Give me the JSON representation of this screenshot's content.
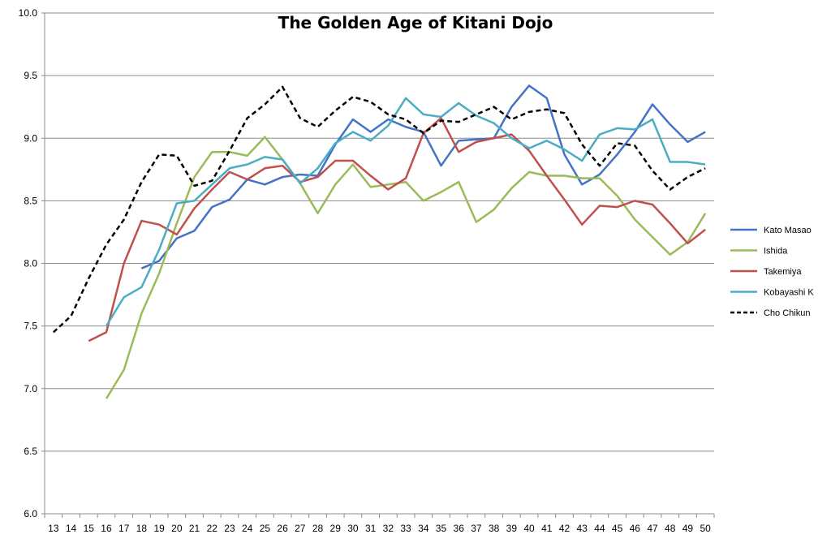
{
  "chart_data": {
    "type": "line",
    "title": "The Golden Age of Kitani Dojo",
    "xlabel": "",
    "ylabel": "",
    "x": [
      13,
      14,
      15,
      16,
      17,
      18,
      19,
      20,
      21,
      22,
      23,
      24,
      25,
      26,
      27,
      28,
      29,
      30,
      31,
      32,
      33,
      34,
      35,
      36,
      37,
      38,
      39,
      40,
      41,
      42,
      43,
      44,
      45,
      46,
      47,
      48,
      49,
      50
    ],
    "ylim": [
      6.0,
      10.0
    ],
    "y_ticks": [
      "6.0",
      "6.5",
      "7.0",
      "7.5",
      "8.0",
      "8.5",
      "9.0",
      "9.5",
      "10.0"
    ],
    "grid": "horizontal",
    "legend_position": "right",
    "series": [
      {
        "name": "Kato Masao",
        "color": "#4472C4",
        "dash": "solid",
        "values": [
          null,
          null,
          null,
          null,
          null,
          7.96,
          8.02,
          8.2,
          8.26,
          8.45,
          8.51,
          8.67,
          8.63,
          8.69,
          8.71,
          8.7,
          8.95,
          9.15,
          9.05,
          9.15,
          9.09,
          9.05,
          8.78,
          8.98,
          8.99,
          9.0,
          9.25,
          9.42,
          9.32,
          8.87,
          8.63,
          8.71,
          8.87,
          9.05,
          9.27,
          9.11,
          8.97,
          9.05
        ]
      },
      {
        "name": "Ishida",
        "color": "#9BBB59",
        "dash": "solid",
        "values": [
          null,
          null,
          null,
          6.92,
          7.15,
          7.6,
          7.92,
          8.32,
          8.69,
          8.89,
          8.89,
          8.86,
          9.01,
          8.83,
          8.64,
          8.4,
          8.63,
          8.79,
          8.61,
          8.63,
          8.65,
          8.5,
          8.57,
          8.65,
          8.33,
          8.43,
          8.6,
          8.73,
          8.7,
          8.7,
          8.68,
          8.68,
          8.54,
          8.35,
          8.21,
          8.07,
          8.17,
          8.4
        ]
      },
      {
        "name": "Takemiya",
        "color": "#C0504D",
        "dash": "solid",
        "values": [
          null,
          null,
          7.38,
          7.45,
          8.0,
          8.34,
          8.31,
          8.23,
          8.44,
          8.59,
          8.73,
          8.67,
          8.76,
          8.78,
          8.65,
          8.69,
          8.82,
          8.82,
          8.7,
          8.59,
          8.68,
          9.04,
          9.16,
          8.89,
          8.97,
          9.0,
          9.03,
          8.9,
          8.7,
          8.51,
          8.31,
          8.46,
          8.45,
          8.5,
          8.47,
          8.32,
          8.16,
          8.27
        ]
      },
      {
        "name": "Kobayashi K",
        "color": "#4BACC6",
        "dash": "solid",
        "values": [
          null,
          null,
          null,
          7.5,
          7.73,
          7.81,
          8.11,
          8.48,
          8.5,
          8.63,
          8.76,
          8.79,
          8.85,
          8.83,
          8.64,
          8.76,
          8.96,
          9.05,
          8.98,
          9.1,
          9.32,
          9.19,
          9.17,
          9.28,
          9.18,
          9.12,
          9.0,
          8.92,
          8.98,
          8.91,
          8.82,
          9.03,
          9.08,
          9.07,
          9.15,
          8.81,
          8.81,
          8.79
        ]
      },
      {
        "name": "Cho Chikun",
        "color": "#000000",
        "dash": "dashed",
        "values": [
          7.45,
          7.58,
          7.88,
          8.15,
          8.35,
          8.65,
          8.87,
          8.86,
          8.62,
          8.66,
          8.9,
          9.16,
          9.27,
          9.41,
          9.16,
          9.09,
          9.22,
          9.33,
          9.29,
          9.19,
          9.15,
          9.04,
          9.14,
          9.13,
          9.19,
          9.25,
          9.15,
          9.21,
          9.23,
          9.2,
          8.95,
          8.78,
          8.96,
          8.94,
          8.74,
          8.59,
          8.69,
          8.76
        ]
      }
    ]
  }
}
